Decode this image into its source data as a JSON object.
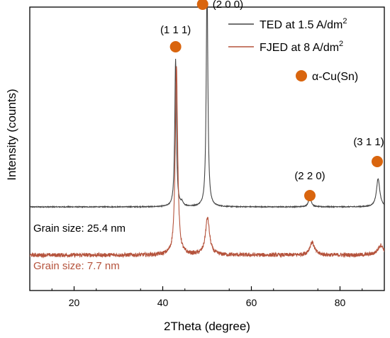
{
  "chart_data": {
    "type": "line",
    "xlabel": "2Theta (degree)",
    "ylabel": "Intensity (counts)",
    "xlim": [
      10,
      90
    ],
    "ylim": [
      0,
      100
    ],
    "x_ticks": [
      20,
      40,
      60,
      80
    ],
    "y_ticks_shown": false,
    "grid": false,
    "legend_position": "top-right",
    "series": [
      {
        "name": "TED at 1.5 A/dm",
        "name_superscript": "2",
        "color": "#444444",
        "baseline": 29.5,
        "noise": 0.15,
        "peaks": [
          {
            "x": 42.9,
            "height": 52,
            "width": 0.22
          },
          {
            "x": 44.3,
            "height": 1.2,
            "width": 0.3
          },
          {
            "x": 50.0,
            "height": 80,
            "width": 0.22
          },
          {
            "x": 73.2,
            "height": 3.8,
            "width": 0.35
          },
          {
            "x": 88.6,
            "height": 10,
            "width": 0.45
          }
        ],
        "annotation": "Grain size: 25.4 nm"
      },
      {
        "name": "FJED at 8 A/dm",
        "name_superscript": "2",
        "color": "#b5533c",
        "baseline": 12.5,
        "noise": 0.7,
        "peaks": [
          {
            "x": 43.1,
            "height": 67,
            "width": 0.32
          },
          {
            "x": 50.1,
            "height": 13,
            "width": 0.55
          },
          {
            "x": 73.7,
            "height": 4.5,
            "width": 0.65
          },
          {
            "x": 89.2,
            "height": 3.5,
            "width": 0.8
          }
        ],
        "annotation": "Grain size: 7.7 nm"
      }
    ],
    "phase_marker": {
      "label": "α-Cu(Sn)",
      "color": "#d9650e"
    },
    "peak_annotations": [
      {
        "label": "(1 1 1)",
        "x": 42.9,
        "marker_y": 86,
        "label_y": 92
      },
      {
        "label": "(2 0 0)",
        "x": 49.0,
        "marker_y": 101,
        "label_y": 101
      },
      {
        "label": "(2 2 0)",
        "x": 73.2,
        "marker_y": 33.5,
        "label_y": 40.5
      },
      {
        "label": "(3 1 1)",
        "x": 88.4,
        "marker_y": 45.5,
        "label_y": 52.5
      }
    ]
  }
}
